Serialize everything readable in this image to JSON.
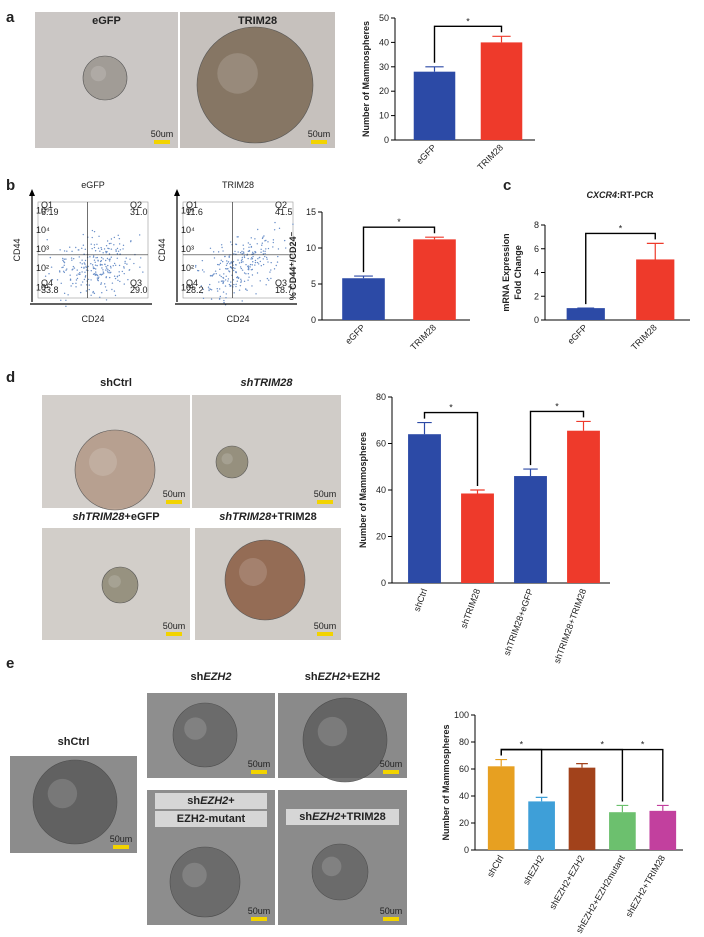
{
  "panels": {
    "letters": [
      "a",
      "b",
      "c",
      "d",
      "e"
    ]
  },
  "micrographs": [
    {
      "label": [
        [
          {
            "text": "eGFP"
          }
        ]
      ],
      "scale": "50um"
    },
    {
      "label": [
        [
          {
            "text": "TRIM28"
          }
        ]
      ],
      "scale": "50um"
    },
    {
      "label": [
        [
          {
            "text": "shCtrl"
          }
        ]
      ],
      "scale": "50um"
    },
    {
      "label": [
        [
          {
            "text": "shTRIM28",
            "italic": true
          }
        ]
      ],
      "scale": "50um"
    },
    {
      "label": [
        [
          {
            "text": "shTRIM28",
            "italic": true
          },
          {
            "text": "+eGFP"
          }
        ]
      ],
      "scale": "50um"
    },
    {
      "label": [
        [
          {
            "text": "shTRIM28",
            "italic": true
          },
          {
            "text": "+TRIM28"
          }
        ]
      ],
      "scale": "50um"
    },
    {
      "label": [
        [
          {
            "text": "shCtrl"
          }
        ]
      ],
      "scale": "50um"
    },
    {
      "label": [
        [
          {
            "text": "sh"
          },
          {
            "text": "EZH2",
            "italic": true
          }
        ]
      ],
      "scale": "50um"
    },
    {
      "label": [
        [
          {
            "text": "sh"
          },
          {
            "text": "EZH2",
            "italic": true
          },
          {
            "text": "+EZH2"
          }
        ]
      ],
      "scale": "50um"
    },
    {
      "label": [
        [
          {
            "text": "sh"
          },
          {
            "text": "EZH2",
            "italic": true
          },
          {
            "text": "+"
          }
        ],
        [
          {
            "text": "EZH2-mutant"
          }
        ]
      ],
      "scale": "50um"
    },
    {
      "label": [
        [
          {
            "text": "sh"
          },
          {
            "text": "EZH2",
            "italic": true
          },
          {
            "text": "+TRIM28"
          }
        ]
      ],
      "scale": "50um"
    }
  ],
  "flow": [
    {
      "title": "eGFP",
      "ylabel": "CD44",
      "xlabel": "CD24",
      "ticks": [
        "10¹",
        "10²",
        "10³",
        "10⁴",
        "10⁵"
      ],
      "quadrants": [
        {
          "name": "Q1",
          "value": "6.19"
        },
        {
          "name": "Q2",
          "value": "31.0"
        },
        {
          "name": "Q4",
          "value": "33.8"
        },
        {
          "name": "Q3",
          "value": "29.0"
        }
      ]
    },
    {
      "title": "TRIM28",
      "ylabel": "CD44",
      "xlabel": "CD24",
      "ticks": [
        "10¹",
        "10²",
        "10³",
        "10⁴",
        "10⁵"
      ],
      "quadrants": [
        {
          "name": "Q1",
          "value": "11.6"
        },
        {
          "name": "Q2",
          "value": "41.5"
        },
        {
          "name": "Q4",
          "value": "28.2"
        },
        {
          "name": "Q3",
          "value": "18.7"
        }
      ]
    }
  ],
  "chart_data": [
    {
      "type": "bar",
      "ylabel": [
        "Number of Mammospheres"
      ],
      "categories": [
        "eGFP",
        "TRIM28"
      ],
      "values": [
        28,
        40
      ],
      "errors": [
        2,
        2.5
      ],
      "colors": [
        "#2c4aa6",
        "#ee3a2b"
      ],
      "ylim": [
        0,
        50
      ],
      "yticks": [
        0,
        10,
        20,
        30,
        40,
        50
      ],
      "brackets": [
        {
          "from": "eGFP",
          "to": "TRIM28",
          "label": "*"
        }
      ]
    },
    {
      "type": "bar",
      "ylabel": [
        "% CD44⁺/CD24⁻"
      ],
      "categories": [
        "eGFP",
        "TRIM28"
      ],
      "values": [
        5.8,
        11.2
      ],
      "errors": [
        0.3,
        0.3
      ],
      "colors": [
        "#2c4aa6",
        "#ee3a2b"
      ],
      "ylim": [
        0,
        15
      ],
      "yticks": [
        0,
        5,
        10,
        15
      ],
      "brackets": [
        {
          "from": "eGFP",
          "to": "TRIM28",
          "label": "*"
        }
      ]
    },
    {
      "type": "bar",
      "title": [
        {
          "text": "CXCR4",
          "italic": true
        },
        {
          "text": ":RT-PCR"
        }
      ],
      "ylabel": [
        "mRNA Expression",
        "Fold Change"
      ],
      "categories": [
        "eGFP",
        "TRIM28"
      ],
      "values": [
        1,
        5.1
      ],
      "errors": [
        0,
        1.35
      ],
      "colors": [
        "#2c4aa6",
        "#ee3a2b"
      ],
      "ylim": [
        0,
        8
      ],
      "yticks": [
        0,
        2,
        4,
        6,
        8
      ],
      "brackets": [
        {
          "from": "eGFP",
          "to": "TRIM28",
          "label": "*"
        }
      ]
    },
    {
      "type": "bar",
      "ylabel": [
        "Number of Mammospheres"
      ],
      "categories": [
        "shCtrl",
        "shTRIM28",
        "shTRIM28+eGFP",
        "shTRIM28+TRIM28"
      ],
      "values": [
        64,
        38.5,
        46,
        65.5
      ],
      "errors": [
        5,
        1.5,
        3,
        4
      ],
      "colors": [
        "#2c4aa6",
        "#ee3a2b",
        "#2c4aa6",
        "#ee3a2b"
      ],
      "ylim": [
        0,
        80
      ],
      "yticks": [
        0,
        20,
        40,
        60,
        80
      ],
      "brackets": [
        {
          "from": "shCtrl",
          "to": "shTRIM28",
          "label": "*"
        },
        {
          "from": "shTRIM28+eGFP",
          "to": "shTRIM28+TRIM28",
          "label": "*"
        }
      ]
    },
    {
      "type": "bar",
      "ylabel": [
        "Number of Mammospheres"
      ],
      "categories": [
        "shCtrl",
        "shEZH2",
        "shEZH2+EZH2",
        "shEZH2+EZH2mutant",
        "shEZH2+TRIM28"
      ],
      "values": [
        62,
        36,
        61,
        28,
        29
      ],
      "errors": [
        5,
        3,
        3,
        5,
        4
      ],
      "colors": [
        "#e7a021",
        "#3e9fd8",
        "#a2421b",
        "#6cc06e",
        "#c2409e"
      ],
      "ylim": [
        0,
        100
      ],
      "yticks": [
        0,
        20,
        40,
        60,
        80,
        100
      ],
      "brackets": [
        {
          "from": "shCtrl",
          "to": "shEZH2",
          "label": "*"
        },
        {
          "from": "shCtrl",
          "to": "shEZH2+EZH2mutant",
          "label": "*"
        },
        {
          "from": "shCtrl",
          "to": "shEZH2+TRIM28",
          "label": "*"
        }
      ]
    }
  ]
}
